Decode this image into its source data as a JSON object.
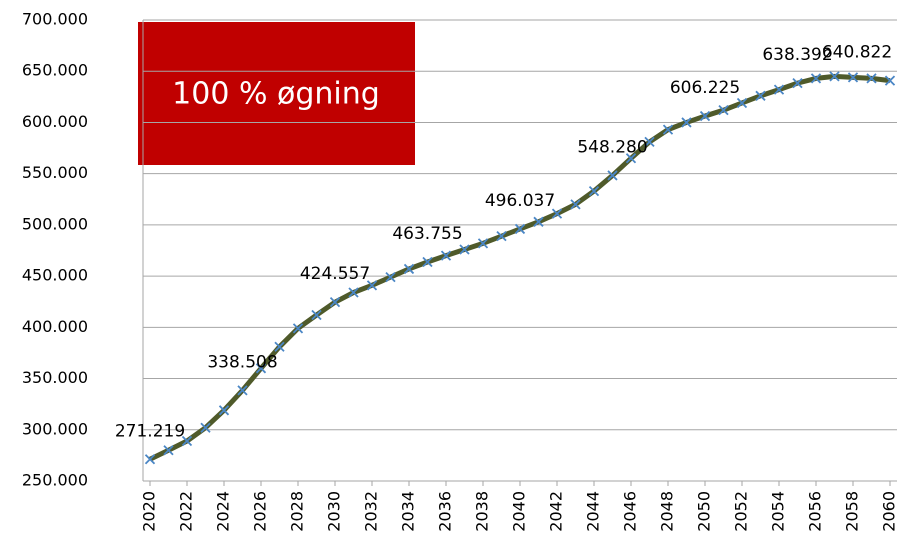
{
  "chart_data": {
    "type": "line",
    "annotation": "100 % øgning",
    "x": [
      2020,
      2021,
      2022,
      2023,
      2024,
      2025,
      2026,
      2027,
      2028,
      2029,
      2030,
      2031,
      2032,
      2033,
      2034,
      2035,
      2036,
      2037,
      2038,
      2039,
      2040,
      2041,
      2042,
      2043,
      2044,
      2045,
      2046,
      2047,
      2048,
      2049,
      2050,
      2051,
      2052,
      2053,
      2054,
      2055,
      2056,
      2057,
      2058,
      2059,
      2060
    ],
    "xlim": [
      2020,
      2060
    ],
    "xticks": [
      2020,
      2022,
      2024,
      2026,
      2028,
      2030,
      2032,
      2034,
      2036,
      2038,
      2040,
      2042,
      2044,
      2046,
      2048,
      2050,
      2052,
      2054,
      2056,
      2058,
      2060
    ],
    "series": [
      {
        "color": "#4f5a2a",
        "marker_color": "#4a86c5",
        "values": [
          271219,
          280000,
          289000,
          302000,
          319000,
          338508,
          360000,
          381000,
          399000,
          412000,
          424557,
          434000,
          441000,
          449000,
          457000,
          463755,
          470000,
          476000,
          482000,
          489000,
          496037,
          503000,
          511000,
          520000,
          533000,
          548280,
          565000,
          581000,
          593000,
          600000,
          606225,
          612000,
          619000,
          626000,
          632000,
          638392,
          643000,
          645000,
          644000,
          643000,
          640822
        ],
        "value_labels": [
          "271.219",
          null,
          null,
          null,
          null,
          "338.508",
          null,
          null,
          null,
          null,
          "424.557",
          null,
          null,
          null,
          null,
          "463.755",
          null,
          null,
          null,
          null,
          "496.037",
          null,
          null,
          null,
          null,
          "548.280",
          null,
          null,
          null,
          null,
          "606.225",
          null,
          null,
          null,
          null,
          "638.392",
          null,
          null,
          null,
          null,
          "640.822"
        ]
      }
    ],
    "ylim": [
      250000,
      700000
    ],
    "yticks": [
      {
        "value": 250000,
        "label": "250.000"
      },
      {
        "value": 300000,
        "label": "300.000"
      },
      {
        "value": 350000,
        "label": "350.000"
      },
      {
        "value": 400000,
        "label": "400.000"
      },
      {
        "value": 450000,
        "label": "450.000"
      },
      {
        "value": 500000,
        "label": "500.000"
      },
      {
        "value": 550000,
        "label": "550.000"
      },
      {
        "value": 600000,
        "label": "600.000"
      },
      {
        "value": 650000,
        "label": "650.000"
      },
      {
        "value": 700000,
        "label": "700.000"
      }
    ],
    "grid": true
  }
}
